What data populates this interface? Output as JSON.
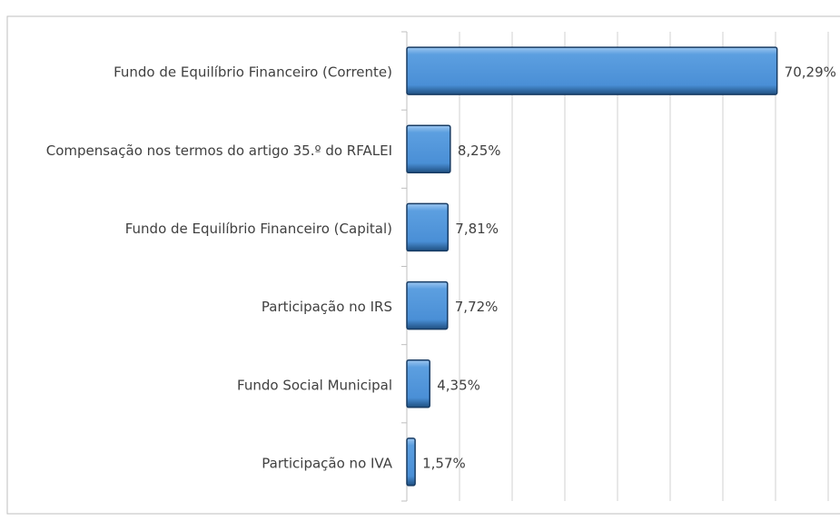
{
  "chart_data": {
    "type": "hbar",
    "categories": [
      "Fundo de Equilíbrio Financeiro (Corrente)",
      "Compensação nos termos do artigo 35.º do RFALEI",
      "Fundo de Equilíbrio Financeiro (Capital)",
      "Participação no IRS",
      "Fundo Social Municipal",
      "Participação no IVA"
    ],
    "values": [
      70.29,
      8.25,
      7.81,
      7.72,
      4.35,
      1.57
    ],
    "value_labels": [
      "70,29%",
      "8,25%",
      "7,81%",
      "7,72%",
      "4,35%",
      "1,57%"
    ],
    "color": "#4a8fd6",
    "xlim": [
      0,
      80
    ],
    "xticks": [
      0,
      10,
      20,
      30,
      40,
      50,
      60,
      70,
      80
    ],
    "grid": true
  }
}
